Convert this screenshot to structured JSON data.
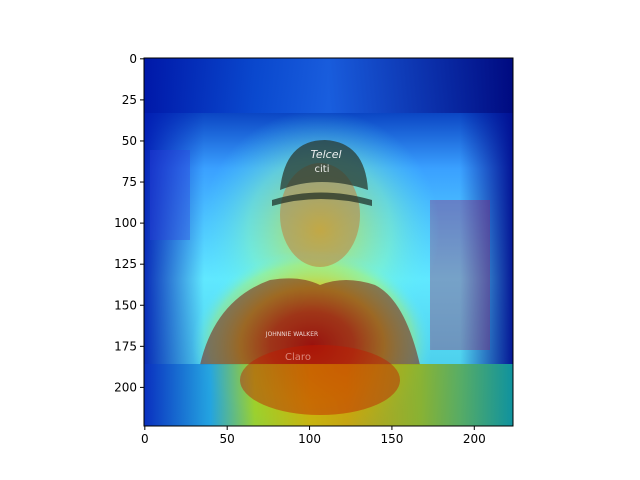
{
  "figure": {
    "image_description_hidden": "",
    "extent": {
      "x": [
        -0.5,
        223.5
      ],
      "y": [
        223.5,
        -0.5
      ]
    },
    "colormap": "jet",
    "x_ticks": [
      {
        "value": 0,
        "label": "0"
      },
      {
        "value": 50,
        "label": "50"
      },
      {
        "value": 100,
        "label": "100"
      },
      {
        "value": 150,
        "label": "150"
      },
      {
        "value": 200,
        "label": "200"
      }
    ],
    "y_ticks": [
      {
        "value": 0,
        "label": "0"
      },
      {
        "value": 25,
        "label": "25"
      },
      {
        "value": 50,
        "label": "50"
      },
      {
        "value": 75,
        "label": "75"
      },
      {
        "value": 100,
        "label": "100"
      },
      {
        "value": 125,
        "label": "125"
      },
      {
        "value": 150,
        "label": "150"
      },
      {
        "value": 175,
        "label": "175"
      },
      {
        "value": 200,
        "label": "200"
      }
    ],
    "photo_text": {
      "cap_logo_1": "Telcel",
      "cap_logo_2": "citi",
      "shirt_logo_1": "JOHNNIE WALKER",
      "shirt_logo_2": "Claro"
    },
    "colors": {
      "cold": "#00008f",
      "cool": "#1e6bff",
      "mid": "#4ff5ff",
      "warm": "#f0f000",
      "hot": "#d00000"
    }
  }
}
